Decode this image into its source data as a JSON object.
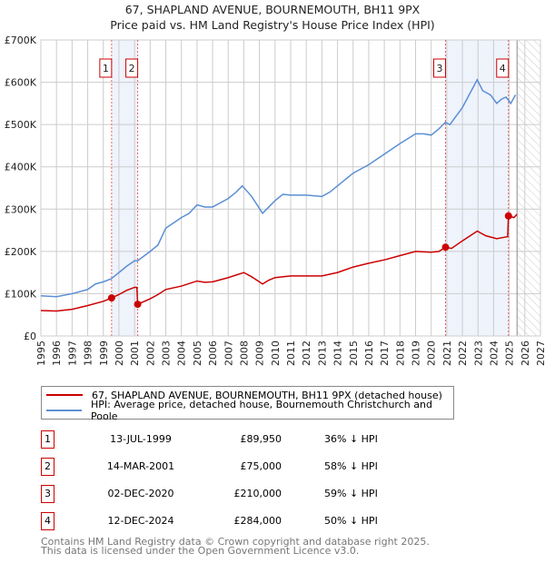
{
  "title": "67, SHAPLAND AVENUE, BOURNEMOUTH, BH11 9PX",
  "subtitle": "Price paid vs. HM Land Registry's House Price Index (HPI)",
  "chart_data": {
    "type": "line",
    "xlim": [
      1995,
      2027
    ],
    "ylim": [
      0,
      700000
    ],
    "yticks": [
      {
        "v": 0,
        "label": "£0"
      },
      {
        "v": 100000,
        "label": "£100K"
      },
      {
        "v": 200000,
        "label": "£200K"
      },
      {
        "v": 300000,
        "label": "£300K"
      },
      {
        "v": 400000,
        "label": "£400K"
      },
      {
        "v": 500000,
        "label": "£500K"
      },
      {
        "v": 600000,
        "label": "£600K"
      },
      {
        "v": 700000,
        "label": "£700K"
      }
    ],
    "xticks": [
      "1995",
      "1996",
      "1997",
      "1998",
      "1999",
      "2000",
      "2001",
      "2002",
      "2003",
      "2004",
      "2005",
      "2006",
      "2007",
      "2008",
      "2009",
      "2010",
      "2011",
      "2012",
      "2013",
      "2014",
      "2015",
      "2016",
      "2017",
      "2018",
      "2019",
      "2020",
      "2021",
      "2022",
      "2023",
      "2024",
      "2025",
      "2026",
      "2027"
    ],
    "grid": true,
    "forecast_start": 2025.5,
    "shaded_ranges": [
      [
        1999.53,
        2001.2
      ],
      [
        2020.92,
        2024.95
      ]
    ],
    "series": [
      {
        "name": "67, SHAPLAND AVENUE, BOURNEMOUTH, BH11 9PX (detached house)",
        "color": "#cc0000",
        "x": [
          1995,
          1996,
          1997,
          1998,
          1999,
          1999.53,
          2000,
          2000.5,
          2001.0,
          2001.15,
          2001.2,
          2002,
          2002.5,
          2003,
          2004,
          2005,
          2005.5,
          2006,
          2007,
          2008,
          2008.5,
          2009.2,
          2009.6,
          2010,
          2011,
          2012,
          2013,
          2014,
          2015,
          2016,
          2017,
          2018,
          2019,
          2020,
          2020.5,
          2020.92,
          2021.3,
          2022,
          2022.95,
          2023.5,
          2024.2,
          2024.9,
          2024.95,
          2025.3,
          2025.5
        ],
        "y": [
          60000,
          59000,
          63000,
          72000,
          82000,
          89950,
          98000,
          108000,
          115000,
          115000,
          75000,
          88000,
          98000,
          110000,
          118000,
          130000,
          127000,
          128000,
          138000,
          150000,
          140000,
          123000,
          132000,
          138000,
          142000,
          142000,
          142000,
          150000,
          163000,
          172000,
          180000,
          190000,
          200000,
          198000,
          200000,
          210000,
          207000,
          225000,
          248000,
          237000,
          230000,
          235000,
          284000,
          280000,
          288000
        ]
      },
      {
        "name": "HPI: Average price, detached house, Bournemouth Christchurch and Poole",
        "color": "#5b8fd4",
        "x": [
          1995,
          1996,
          1997,
          1998,
          1998.5,
          1999,
          1999.5,
          2000,
          2000.5,
          2001,
          2001.2,
          2002,
          2002.5,
          2003,
          2004,
          2004.5,
          2005,
          2005.5,
          2006,
          2007,
          2007.5,
          2007.9,
          2008.5,
          2009.2,
          2009.6,
          2010,
          2010.5,
          2011,
          2012,
          2013,
          2013.5,
          2014,
          2015,
          2016,
          2017,
          2018,
          2019,
          2019.5,
          2020,
          2020.5,
          2020.9,
          2021.2,
          2022,
          2022.5,
          2022.95,
          2023.3,
          2023.8,
          2024.2,
          2024.5,
          2024.8,
          2025.1,
          2025.4
        ],
        "y": [
          95000,
          93000,
          100000,
          110000,
          123000,
          128000,
          135000,
          150000,
          165000,
          178000,
          178000,
          200000,
          215000,
          255000,
          280000,
          290000,
          310000,
          305000,
          305000,
          325000,
          340000,
          355000,
          330000,
          290000,
          305000,
          320000,
          335000,
          333000,
          333000,
          330000,
          340000,
          355000,
          385000,
          405000,
          430000,
          455000,
          478000,
          478000,
          475000,
          490000,
          505000,
          500000,
          540000,
          575000,
          606000,
          580000,
          570000,
          550000,
          560000,
          565000,
          550000,
          570000
        ]
      }
    ],
    "sales": [
      {
        "n": "1",
        "x": 1999.53,
        "date": "13-JUL-1999",
        "price": "£89,950",
        "value": 89950,
        "hpi": "36% ↓ HPI"
      },
      {
        "n": "2",
        "x": 2001.2,
        "date": "14-MAR-2001",
        "price": "£75,000",
        "value": 75000,
        "hpi": "58% ↓ HPI"
      },
      {
        "n": "3",
        "x": 2020.92,
        "date": "02-DEC-2020",
        "price": "£210,000",
        "value": 210000,
        "hpi": "59% ↓ HPI"
      },
      {
        "n": "4",
        "x": 2024.95,
        "date": "12-DEC-2024",
        "price": "£284,000",
        "value": 284000,
        "hpi": "50% ↓ HPI"
      }
    ]
  },
  "footer": [
    "Contains HM Land Registry data © Crown copyright and database right 2025.",
    "This data is licensed under the Open Government Licence v3.0."
  ]
}
